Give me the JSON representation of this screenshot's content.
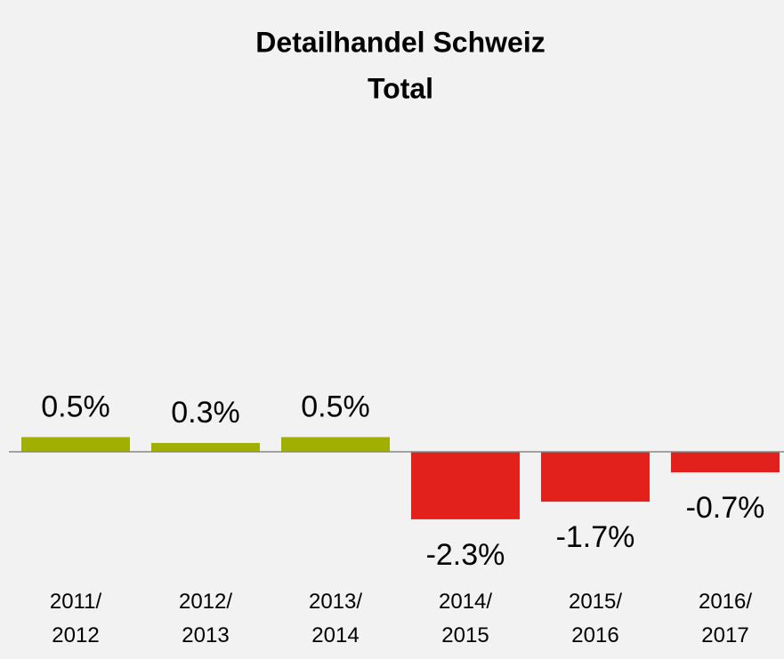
{
  "chart_data": {
    "type": "bar",
    "title": [
      "Detailhandel Schweiz",
      "Total"
    ],
    "categories": [
      "2011/2012",
      "2012/2013",
      "2013/2014",
      "2014/2015",
      "2015/2016",
      "2016/2017"
    ],
    "values": [
      0.5,
      0.3,
      0.5,
      -2.3,
      -1.7,
      -0.7
    ],
    "value_labels": [
      "0.5%",
      "0.3%",
      "0.5%",
      "-2.3%",
      "-1.7%",
      "-0.7%"
    ],
    "colors": [
      "#a0b000",
      "#a0b000",
      "#a0b000",
      "#e2211c",
      "#e2211c",
      "#e2211c"
    ]
  }
}
